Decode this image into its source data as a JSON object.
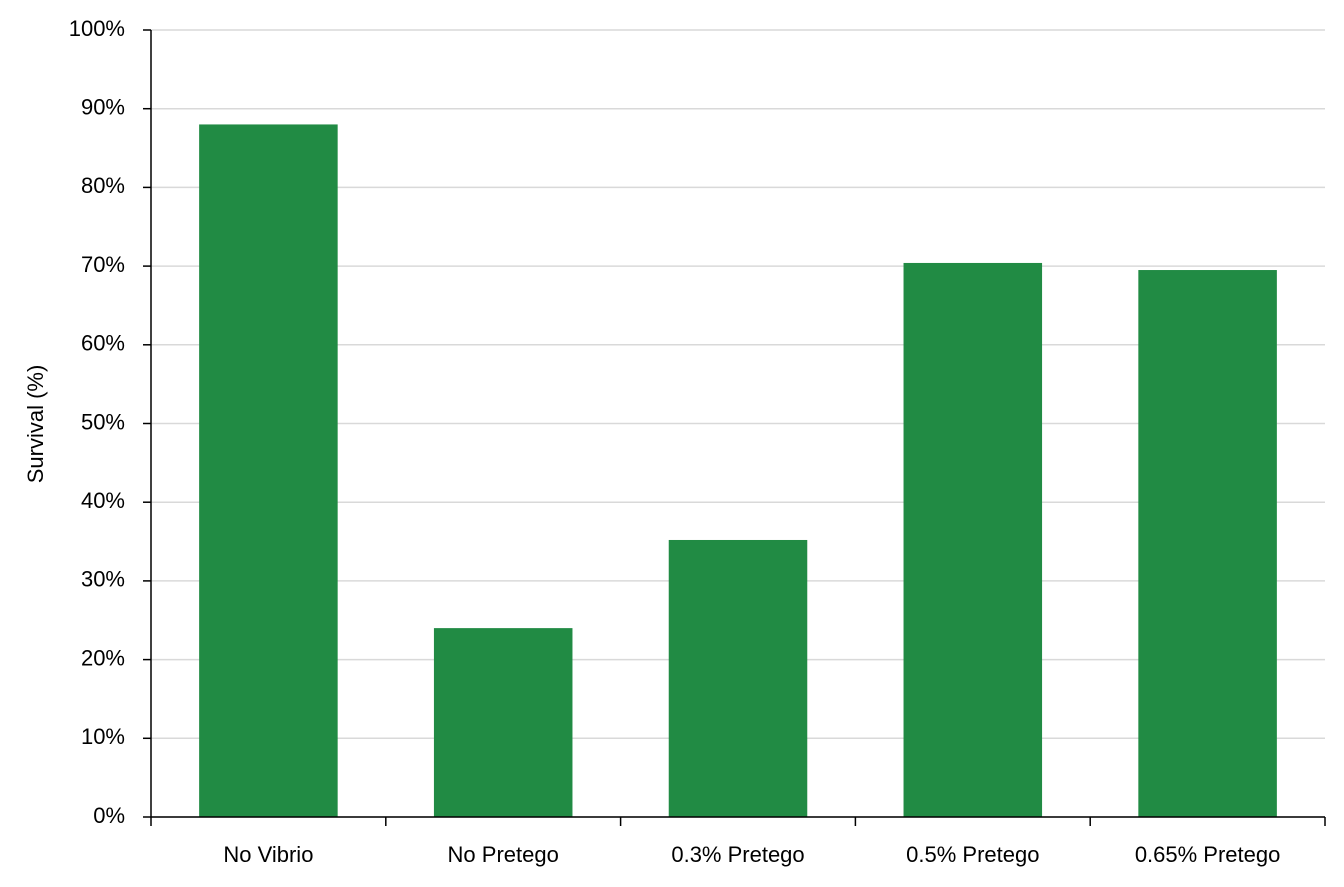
{
  "chart_data": {
    "type": "bar",
    "y_label": "Survival (%)",
    "categories": [
      "No Vibrio",
      "No Pretego",
      "0.3% Pretego",
      "0.5% Pretego",
      "0.65% Pretego"
    ],
    "values": [
      88,
      24,
      35.2,
      70.4,
      69.5
    ],
    "color": "#218b44",
    "ylim": [
      0,
      100
    ],
    "yticks": [
      {
        "value": 0,
        "label": "0%"
      },
      {
        "value": 10,
        "label": "10%"
      },
      {
        "value": 20,
        "label": "20%"
      },
      {
        "value": 30,
        "label": "30%"
      },
      {
        "value": 40,
        "label": "40%"
      },
      {
        "value": 50,
        "label": "50%"
      },
      {
        "value": 60,
        "label": "60%"
      },
      {
        "value": 70,
        "label": "70%"
      },
      {
        "value": 80,
        "label": "80%"
      },
      {
        "value": 90,
        "label": "90%"
      },
      {
        "value": 100,
        "label": "100%"
      }
    ],
    "grid": true
  }
}
